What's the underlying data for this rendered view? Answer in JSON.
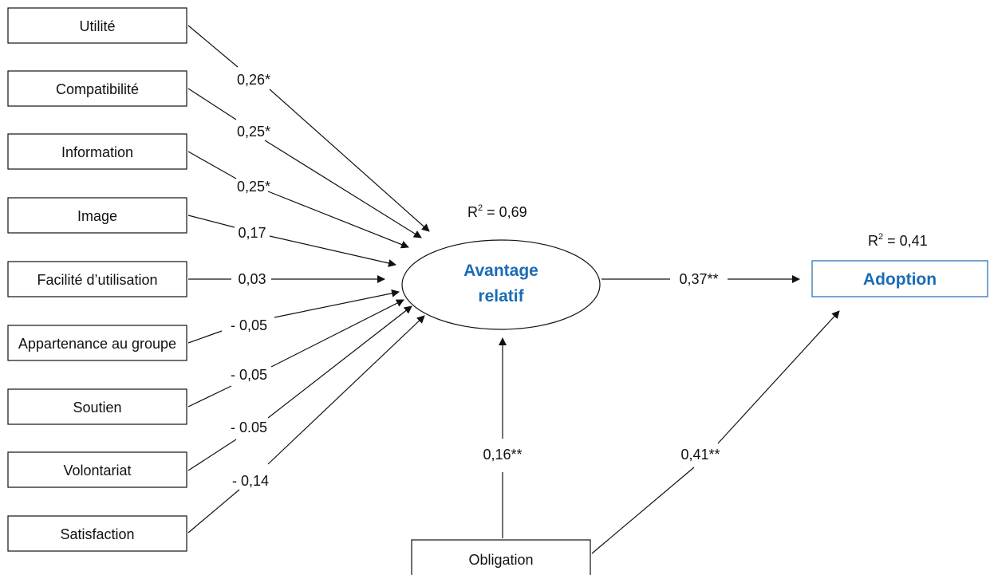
{
  "colors": {
    "accent": "#1a6cb4",
    "line": "#111111",
    "text": "#111111"
  },
  "predictors": [
    {
      "label": "Utilité",
      "coef": "0,26*"
    },
    {
      "label": "Compatibilité",
      "coef": "0,25*"
    },
    {
      "label": "Information",
      "coef": "0,25*"
    },
    {
      "label": "Image",
      "coef": "0,17"
    },
    {
      "label": "Facilité d’utilisation",
      "coef": "0,03"
    },
    {
      "label": "Appartenance au groupe",
      "coef": "- 0,05"
    },
    {
      "label": "Soutien",
      "coef": "- 0,05"
    },
    {
      "label": "Volontariat",
      "coef": "- 0.05"
    },
    {
      "label": "Satisfaction",
      "coef": "- 0,14"
    }
  ],
  "central": {
    "label_line1": "Avantage",
    "label_line2": "relatif",
    "r2_prefix": "R",
    "r2_sup": "2",
    "r2_value": " = 0,69"
  },
  "outcome": {
    "label": "Adoption",
    "r2_prefix": "R",
    "r2_sup": "2",
    "r2_value": " = 0,41"
  },
  "obligation": {
    "label": "Obligation",
    "coef_to_central": "0,16**",
    "coef_to_outcome": "0,41**"
  },
  "central_to_outcome_coef": "0,37**"
}
